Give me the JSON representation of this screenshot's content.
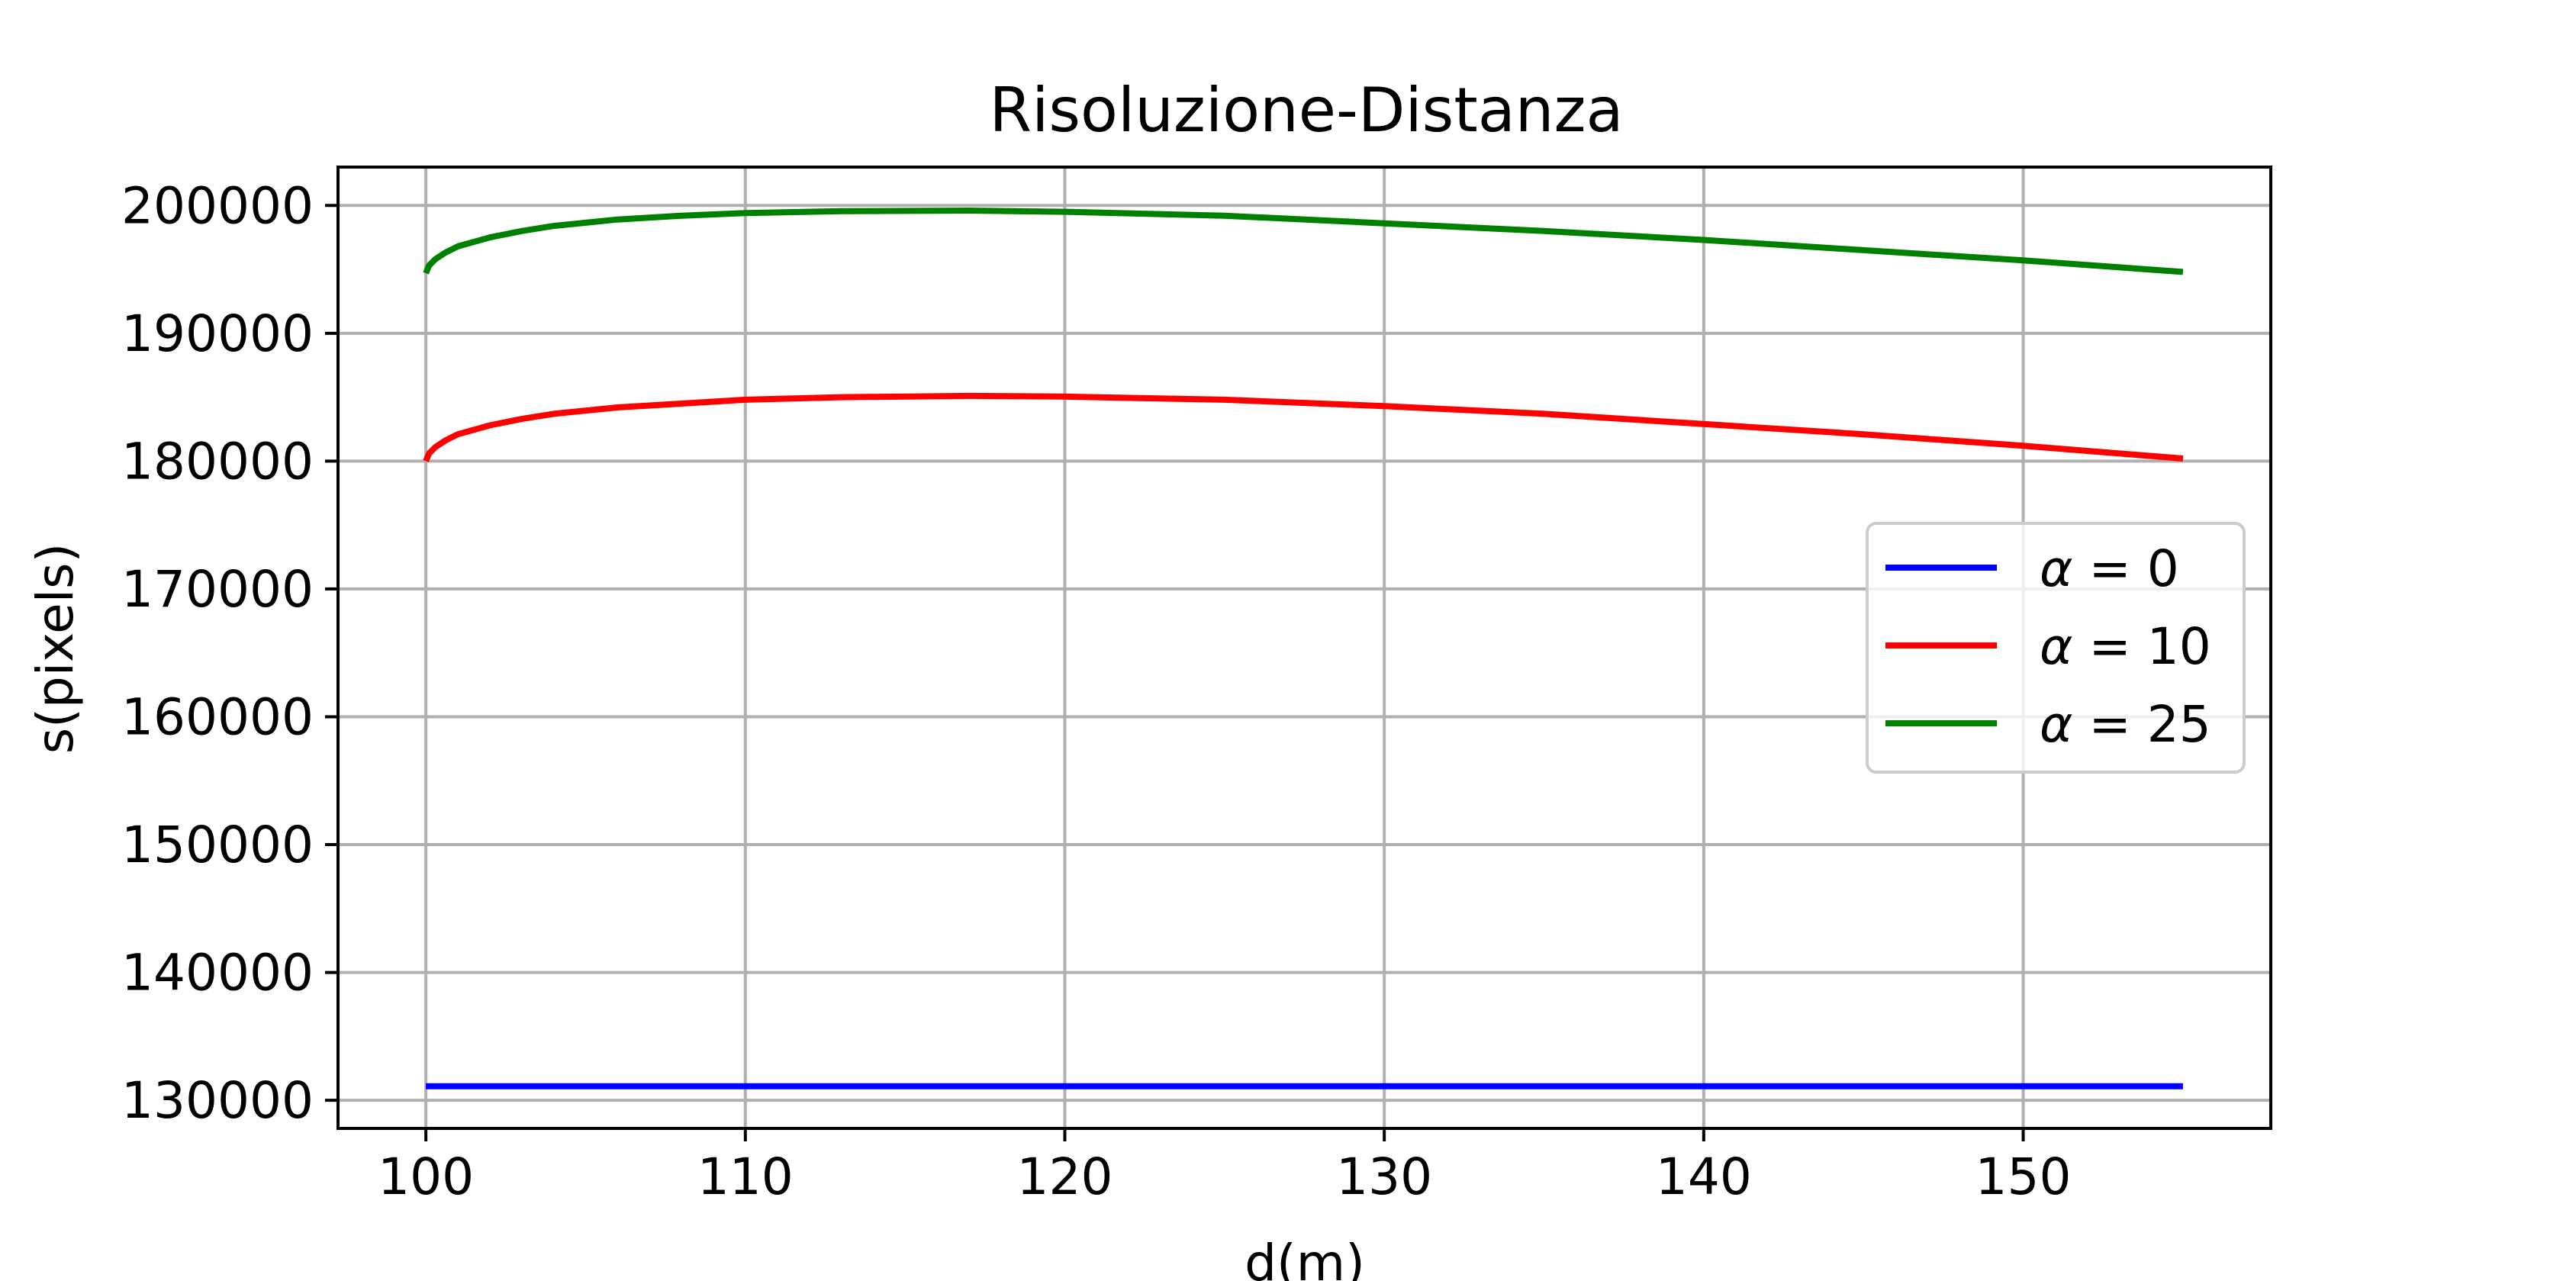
{
  "chart_data": {
    "type": "line",
    "title": "Risoluzione-Distanza",
    "xlabel": "d(m)",
    "ylabel": "s(pixels)",
    "xlim": [
      97.25,
      157.75
    ],
    "ylim": [
      127800,
      203000
    ],
    "xticks": [
      100,
      110,
      120,
      130,
      140,
      150
    ],
    "yticks": [
      130000,
      140000,
      150000,
      160000,
      170000,
      180000,
      190000,
      200000
    ],
    "grid": true,
    "legend_position": "center-right",
    "series": [
      {
        "name": "α = 0",
        "symbol": "α",
        "rest": " = 0",
        "color": "#0000ff",
        "x": [
          100,
          102,
          105,
          110,
          115,
          120,
          125,
          130,
          135,
          140,
          145,
          150,
          155
        ],
        "y": [
          131100,
          131100,
          131100,
          131100,
          131100,
          131100,
          131100,
          131100,
          131100,
          131100,
          131100,
          131100,
          131100
        ]
      },
      {
        "name": "α = 10",
        "symbol": "α",
        "rest": " = 10",
        "color": "#ff0000",
        "x": [
          100,
          100.1,
          100.3,
          100.6,
          101,
          102,
          103,
          104,
          106,
          108,
          110,
          113,
          117,
          120,
          125,
          130,
          135,
          140,
          145,
          150,
          155
        ],
        "y": [
          180000,
          180600,
          181100,
          181600,
          182100,
          182800,
          183300,
          183700,
          184200,
          184500,
          184800,
          185000,
          185100,
          185050,
          184800,
          184300,
          183700,
          182900,
          182100,
          181200,
          180200
        ]
      },
      {
        "name": "α = 25",
        "symbol": "α",
        "rest": " = 25",
        "color": "#008000",
        "x": [
          100,
          100.1,
          100.3,
          100.6,
          101,
          102,
          103,
          104,
          106,
          108,
          110,
          113,
          117,
          120,
          125,
          130,
          135,
          140,
          145,
          150,
          155
        ],
        "y": [
          194700,
          195300,
          195800,
          196300,
          196800,
          197500,
          198000,
          198400,
          198900,
          199200,
          199400,
          199550,
          199600,
          199500,
          199200,
          198600,
          198000,
          197300,
          196500,
          195700,
          194800
        ]
      }
    ]
  }
}
